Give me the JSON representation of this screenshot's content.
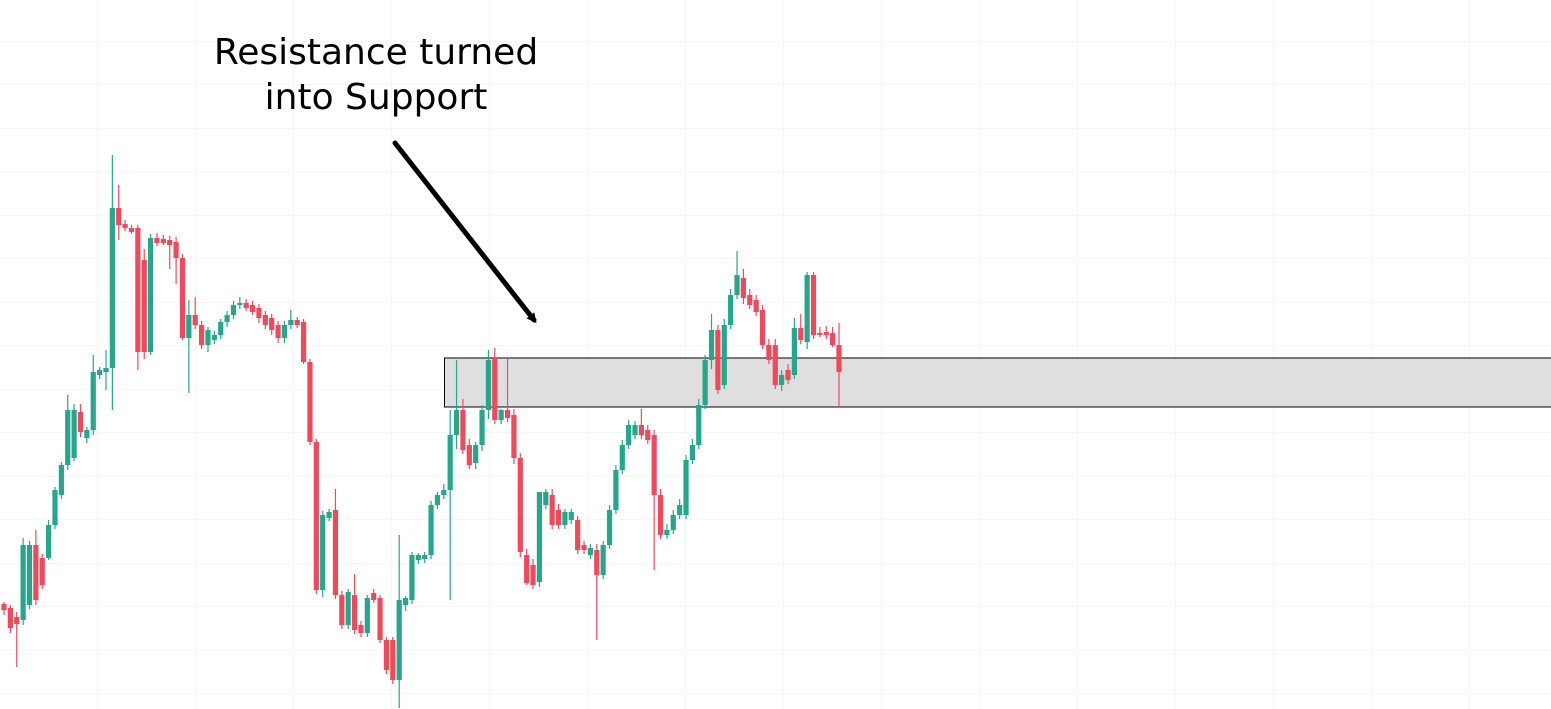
{
  "chart_data": {
    "type": "candlestick",
    "annotation": [
      "Resistance turned",
      "into Support"
    ],
    "up_color": "#26a68a",
    "down_color": "#ef4a5c",
    "zone_color": "#dcdcdc",
    "ylim": [
      0,
      709
    ],
    "zone": [
      302,
      351
    ],
    "ohlc": [
      [
        105,
        107,
        94,
        99
      ],
      [
        101,
        104,
        76,
        81
      ],
      [
        92,
        97,
        42,
        85
      ],
      [
        89,
        171,
        84,
        164
      ],
      [
        104,
        168,
        100,
        164
      ],
      [
        164,
        179,
        104,
        109
      ],
      [
        151,
        155,
        120,
        124
      ],
      [
        151,
        189,
        149,
        184
      ],
      [
        184,
        222,
        180,
        219
      ],
      [
        214,
        247,
        210,
        244
      ],
      [
        244,
        314,
        239,
        299
      ],
      [
        251,
        305,
        248,
        299
      ],
      [
        297,
        305,
        272,
        277
      ],
      [
        271,
        282,
        266,
        279
      ],
      [
        279,
        354,
        274,
        337
      ],
      [
        334,
        342,
        330,
        339
      ],
      [
        337,
        359,
        319,
        341
      ],
      [
        341,
        554,
        299,
        501
      ],
      [
        501,
        524,
        469,
        484
      ],
      [
        485,
        489,
        478,
        481
      ],
      [
        481,
        484,
        475,
        477
      ],
      [
        481,
        484,
        339,
        357
      ],
      [
        449,
        460,
        350,
        357
      ],
      [
        357,
        475,
        354,
        471
      ],
      [
        471,
        476,
        463,
        466
      ],
      [
        470,
        474,
        464,
        466
      ],
      [
        469,
        473,
        440,
        464
      ],
      [
        467,
        472,
        425,
        451
      ],
      [
        451,
        455,
        369,
        371
      ],
      [
        371,
        409,
        316,
        394
      ],
      [
        394,
        412,
        380,
        384
      ],
      [
        384,
        388,
        360,
        364
      ],
      [
        364,
        382,
        357,
        379
      ],
      [
        369,
        378,
        365,
        374
      ],
      [
        374,
        390,
        370,
        387
      ],
      [
        387,
        398,
        382,
        394
      ],
      [
        394,
        408,
        390,
        404
      ],
      [
        404,
        412,
        400,
        406
      ],
      [
        406,
        410,
        398,
        401
      ],
      [
        404,
        408,
        394,
        397
      ],
      [
        401,
        405,
        386,
        391
      ],
      [
        394,
        398,
        380,
        384
      ],
      [
        391,
        395,
        374,
        379
      ],
      [
        384,
        388,
        366,
        371
      ],
      [
        371,
        388,
        366,
        384
      ],
      [
        384,
        399,
        380,
        389
      ],
      [
        389,
        392,
        381,
        384
      ],
      [
        387,
        390,
        345,
        347
      ],
      [
        347,
        350,
        264,
        267
      ],
      [
        267,
        270,
        115,
        119
      ],
      [
        119,
        198,
        112,
        194
      ],
      [
        191,
        200,
        188,
        197
      ],
      [
        199,
        220,
        110,
        114
      ],
      [
        114,
        118,
        80,
        84
      ],
      [
        84,
        120,
        80,
        117
      ],
      [
        114,
        135,
        75,
        79
      ],
      [
        84,
        88,
        72,
        76
      ],
      [
        76,
        114,
        72,
        111
      ],
      [
        116,
        120,
        106,
        109
      ],
      [
        111,
        114,
        66,
        69
      ],
      [
        69,
        72,
        35,
        39
      ],
      [
        69,
        72,
        25,
        29
      ],
      [
        29,
        174,
        1,
        109
      ],
      [
        104,
        113,
        98,
        111
      ],
      [
        109,
        157,
        105,
        154
      ],
      [
        149,
        156,
        145,
        154
      ],
      [
        150,
        157,
        146,
        154
      ],
      [
        154,
        208,
        150,
        204
      ],
      [
        204,
        217,
        200,
        214
      ],
      [
        214,
        225,
        210,
        219
      ],
      [
        219,
        299,
        109,
        274
      ],
      [
        274,
        349,
        260,
        299
      ],
      [
        299,
        310,
        255,
        259
      ],
      [
        264,
        270,
        240,
        244
      ],
      [
        246,
        267,
        240,
        264
      ],
      [
        264,
        304,
        258,
        299
      ],
      [
        299,
        359,
        290,
        349
      ],
      [
        351,
        361,
        285,
        289
      ],
      [
        289,
        300,
        285,
        299
      ],
      [
        299,
        352,
        287,
        291
      ],
      [
        294,
        300,
        245,
        251
      ],
      [
        251,
        256,
        152,
        157
      ],
      [
        154,
        160,
        124,
        126
      ],
      [
        144,
        150,
        120,
        124
      ],
      [
        127,
        217,
        122,
        217
      ],
      [
        204,
        220,
        200,
        217
      ],
      [
        214,
        220,
        180,
        184
      ],
      [
        199,
        205,
        180,
        184
      ],
      [
        184,
        200,
        180,
        197
      ],
      [
        189,
        200,
        185,
        197
      ],
      [
        189,
        193,
        155,
        159
      ],
      [
        164,
        168,
        155,
        159
      ],
      [
        154,
        165,
        150,
        161
      ],
      [
        159,
        165,
        69,
        134
      ],
      [
        134,
        168,
        130,
        164
      ],
      [
        164,
        204,
        160,
        199
      ],
      [
        199,
        244,
        195,
        239
      ],
      [
        239,
        269,
        235,
        264
      ],
      [
        264,
        289,
        260,
        284
      ],
      [
        274,
        288,
        270,
        284
      ],
      [
        284,
        300,
        270,
        274
      ],
      [
        279,
        284,
        265,
        269
      ],
      [
        274,
        279,
        139,
        214
      ],
      [
        214,
        220,
        170,
        174
      ],
      [
        174,
        185,
        170,
        179
      ],
      [
        179,
        199,
        175,
        194
      ],
      [
        194,
        210,
        190,
        204
      ],
      [
        194,
        254,
        190,
        249
      ],
      [
        249,
        270,
        245,
        264
      ],
      [
        264,
        310,
        260,
        304
      ],
      [
        304,
        354,
        300,
        349
      ],
      [
        349,
        395,
        340,
        379
      ],
      [
        379,
        384,
        315,
        319
      ],
      [
        324,
        390,
        320,
        384
      ],
      [
        384,
        420,
        380,
        414
      ],
      [
        414,
        458,
        410,
        434
      ],
      [
        431,
        440,
        405,
        411
      ],
      [
        414,
        420,
        400,
        404
      ],
      [
        409,
        414,
        393,
        397
      ],
      [
        399,
        404,
        360,
        364
      ],
      [
        364,
        370,
        345,
        349
      ],
      [
        364,
        370,
        320,
        324
      ],
      [
        324,
        339,
        318,
        334
      ],
      [
        339,
        345,
        325,
        329
      ],
      [
        334,
        391,
        330,
        381
      ],
      [
        381,
        395,
        365,
        369
      ],
      [
        367,
        437,
        360,
        434
      ],
      [
        434,
        437,
        370,
        374
      ],
      [
        376,
        382,
        372,
        374
      ],
      [
        377,
        383,
        370,
        374
      ],
      [
        376,
        382,
        362,
        364
      ],
      [
        364,
        386,
        301,
        337
      ]
    ]
  }
}
